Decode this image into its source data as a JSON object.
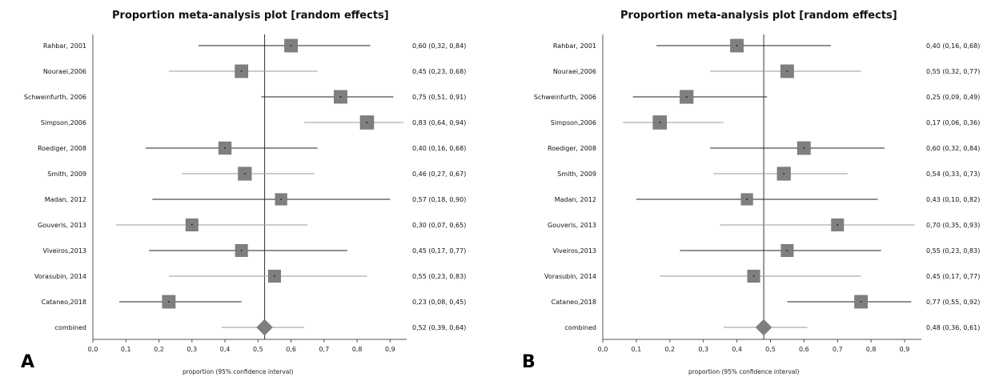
{
  "chart_data": [
    {
      "type": "forest",
      "panel_label": "A",
      "title": "Proportion meta-analysis plot [random effects]",
      "xlabel": "proportion (95% confidence interval)",
      "xlim": [
        0,
        0.95
      ],
      "xticks": [
        "0,0",
        "0,1",
        "0,2",
        "0,3",
        "0,4",
        "0,5",
        "0,6",
        "0,7",
        "0,8",
        "0,9"
      ],
      "xtick_values": [
        0,
        0.1,
        0.2,
        0.3,
        0.4,
        0.5,
        0.6,
        0.7,
        0.8,
        0.9
      ],
      "pooled_line": 0.52,
      "studies": [
        {
          "label": "Rahbar, 2001",
          "estimate": 0.6,
          "lower": 0.32,
          "upper": 0.84,
          "text": "0,60 (0,32, 0,84)",
          "weight": 0.9
        },
        {
          "label": "Nouraei,2006",
          "estimate": 0.45,
          "lower": 0.23,
          "upper": 0.68,
          "text": "0,45 (0,23, 0,68)",
          "weight": 0.9
        },
        {
          "label": "Schweinfurth, 2006",
          "estimate": 0.75,
          "lower": 0.51,
          "upper": 0.91,
          "text": "0,75 (0,51, 0,91)",
          "weight": 0.9
        },
        {
          "label": "Simpson,2006",
          "estimate": 0.83,
          "lower": 0.64,
          "upper": 0.94,
          "text": "0,83 (0,64, 0,94)",
          "weight": 1.0
        },
        {
          "label": "Roediger, 2008",
          "estimate": 0.4,
          "lower": 0.16,
          "upper": 0.68,
          "text": "0,40 (0,16, 0,68)",
          "weight": 0.85
        },
        {
          "label": "Smith, 2009",
          "estimate": 0.46,
          "lower": 0.27,
          "upper": 0.67,
          "text": "0,46 (0,27, 0,67)",
          "weight": 0.95
        },
        {
          "label": "Madan, 2012",
          "estimate": 0.57,
          "lower": 0.18,
          "upper": 0.9,
          "text": "0,57 (0,18, 0,90)",
          "weight": 0.7
        },
        {
          "label": "Gouveris, 2013",
          "estimate": 0.3,
          "lower": 0.07,
          "upper": 0.65,
          "text": "0,30 (0,07, 0,65)",
          "weight": 0.8
        },
        {
          "label": "Viveiros,2013",
          "estimate": 0.45,
          "lower": 0.17,
          "upper": 0.77,
          "text": "0,45 (0,17, 0,77)",
          "weight": 0.8
        },
        {
          "label": "Vorasubin, 2014",
          "estimate": 0.55,
          "lower": 0.23,
          "upper": 0.83,
          "text": "0,55 (0,23, 0,83)",
          "weight": 0.8
        },
        {
          "label": "Cataneo,2018",
          "estimate": 0.23,
          "lower": 0.08,
          "upper": 0.45,
          "text": "0,23 (0,08, 0,45)",
          "weight": 0.9
        }
      ],
      "combined": {
        "label": "combined",
        "estimate": 0.52,
        "lower": 0.39,
        "upper": 0.64,
        "text": "0,52 (0,39, 0,64)"
      }
    },
    {
      "type": "forest",
      "panel_label": "B",
      "title": "Proportion meta-analysis plot [random effects]",
      "xlabel": "proportion (95% confidence interval)",
      "xlim": [
        0,
        0.95
      ],
      "xticks": [
        "0,0",
        "0,1",
        "0,2",
        "0,3",
        "0,4",
        "0,5",
        "0,6",
        "0,7",
        "0,8",
        "0,9"
      ],
      "xtick_values": [
        0,
        0.1,
        0.2,
        0.3,
        0.4,
        0.5,
        0.6,
        0.7,
        0.8,
        0.9
      ],
      "pooled_line": 0.48,
      "studies": [
        {
          "label": "Rahbar, 2001",
          "estimate": 0.4,
          "lower": 0.16,
          "upper": 0.68,
          "text": "0,40 (0,16, 0,68)",
          "weight": 0.9
        },
        {
          "label": "Nouraei,2006",
          "estimate": 0.55,
          "lower": 0.32,
          "upper": 0.77,
          "text": "0,55 (0,32, 0,77)",
          "weight": 0.9
        },
        {
          "label": "Schweinfurth, 2006",
          "estimate": 0.25,
          "lower": 0.09,
          "upper": 0.49,
          "text": "0,25 (0,09, 0,49)",
          "weight": 0.95
        },
        {
          "label": "Simpson,2006",
          "estimate": 0.17,
          "lower": 0.06,
          "upper": 0.36,
          "text": "0,17 (0,06, 0,36)",
          "weight": 1.0
        },
        {
          "label": "Roediger, 2008",
          "estimate": 0.6,
          "lower": 0.32,
          "upper": 0.84,
          "text": "0,60 (0,32, 0,84)",
          "weight": 0.9
        },
        {
          "label": "Smith, 2009",
          "estimate": 0.54,
          "lower": 0.33,
          "upper": 0.73,
          "text": "0,54 (0,33, 0,73)",
          "weight": 0.95
        },
        {
          "label": "Madan, 2012",
          "estimate": 0.43,
          "lower": 0.1,
          "upper": 0.82,
          "text": "0,43 (0,10, 0,82)",
          "weight": 0.7
        },
        {
          "label": "Gouveris, 2013",
          "estimate": 0.7,
          "lower": 0.35,
          "upper": 0.93,
          "text": "0,70 (0,35, 0,93)",
          "weight": 0.8
        },
        {
          "label": "Viveiros,2013",
          "estimate": 0.55,
          "lower": 0.23,
          "upper": 0.83,
          "text": "0,55 (0,23, 0,83)",
          "weight": 0.8
        },
        {
          "label": "Vorasubin, 2014",
          "estimate": 0.45,
          "lower": 0.17,
          "upper": 0.77,
          "text": "0,45 (0,17, 0,77)",
          "weight": 0.8
        },
        {
          "label": "Cataneo,2018",
          "estimate": 0.77,
          "lower": 0.55,
          "upper": 0.92,
          "text": "0,77 (0,55, 0,92)",
          "weight": 0.9
        }
      ],
      "combined": {
        "label": "combined",
        "estimate": 0.48,
        "lower": 0.36,
        "upper": 0.61,
        "text": "0,48 (0,36, 0,61)"
      }
    }
  ],
  "colors": {
    "marker": "#7f7f7f",
    "marker_stroke": "#6a6a6a",
    "ci_line_dark": "#222222",
    "ci_line_light": "#9a9a9a",
    "axis": "#555555",
    "pooled_line": "#333333"
  }
}
